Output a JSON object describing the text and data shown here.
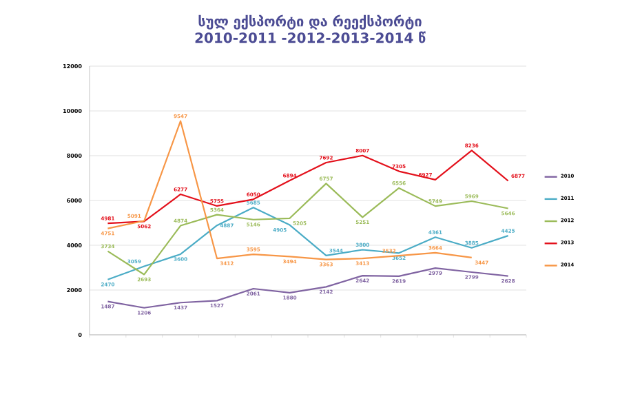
{
  "chart_data": {
    "type": "line",
    "title": "სულ  ექსპორტი და რეექსპორტი 2010-2011 -2012-2013-2014 წ",
    "categories": [
      null,
      null,
      null,
      null,
      null,
      null,
      null,
      null,
      null,
      null,
      null,
      null
    ],
    "series": [
      {
        "name": "2010",
        "color": "#8064a2",
        "values": [
          1487,
          1206,
          1437,
          1527,
          2061,
          1880,
          2142,
          2642,
          2619,
          2979,
          2799,
          2628
        ]
      },
      {
        "name": "2011",
        "color": "#4bacc6",
        "values": [
          2470,
          3059,
          3600,
          4887,
          5685,
          4905,
          3544,
          3800,
          3652,
          4361,
          3885,
          4425
        ]
      },
      {
        "name": "2012",
        "color": "#9bbb59",
        "values": [
          3734,
          2693,
          4874,
          5364,
          5146,
          5205,
          6757,
          5251,
          6556,
          5749,
          5969,
          5646
        ]
      },
      {
        "name": "2013",
        "color": "#e3101b",
        "values": [
          4981,
          5062,
          6277,
          5755,
          6050,
          6894,
          7692,
          8007,
          7305,
          6927,
          8236,
          6877
        ]
      },
      {
        "name": "2014",
        "color": "#f79646",
        "values": [
          4751,
          5091,
          9547,
          3412,
          3595,
          3494,
          3363,
          3413,
          3532,
          3664,
          3447,
          null
        ]
      }
    ],
    "ylim": [
      0,
      12000
    ],
    "yticks": [
      0,
      2000,
      4000,
      6000,
      8000,
      10000,
      12000
    ],
    "grid": "y",
    "legend": "right",
    "data_labels": true,
    "tick_labels": "y",
    "marker": "none",
    "line_style": "solid"
  }
}
